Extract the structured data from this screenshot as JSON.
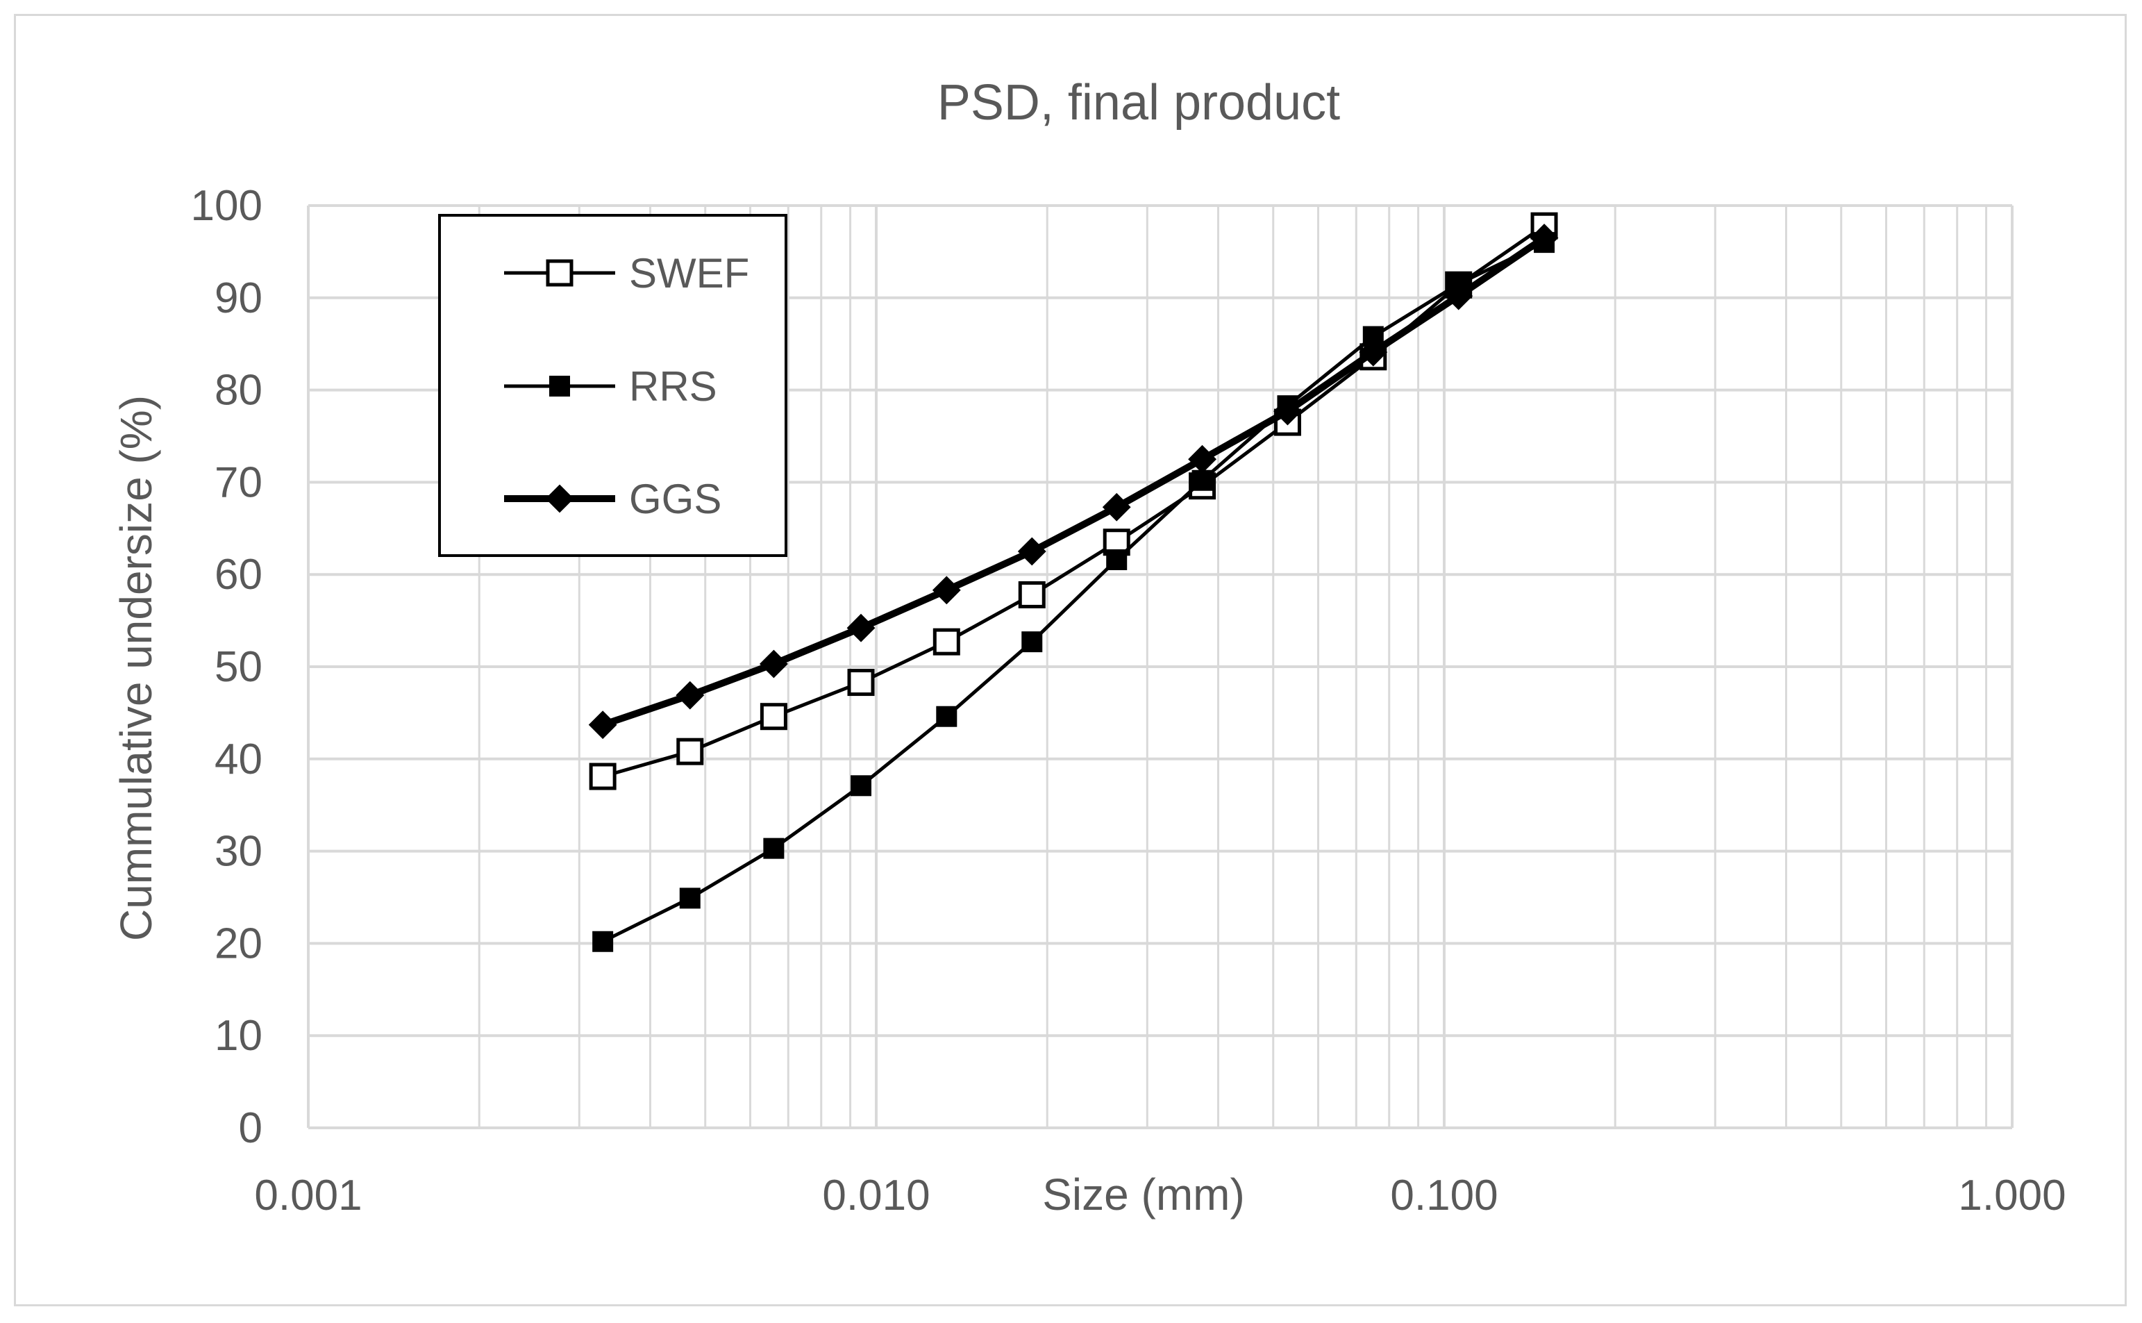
{
  "chart_data": {
    "type": "scatter",
    "title": "PSD, final product",
    "xlabel": "Size (mm)",
    "ylabel": "Cummulative undersize (%)",
    "xscale": "log",
    "xlim": [
      0.001,
      1.0
    ],
    "ylim": [
      0,
      100
    ],
    "x_tick_labels": [
      "0.001",
      "0.010",
      "0.100",
      "1.000"
    ],
    "x_tick_values": [
      0.001,
      0.01,
      0.1,
      1.0
    ],
    "y_tick_labels": [
      "0",
      "10",
      "20",
      "30",
      "40",
      "50",
      "60",
      "70",
      "80",
      "90",
      "100"
    ],
    "y_tick_values": [
      0,
      10,
      20,
      30,
      40,
      50,
      60,
      70,
      80,
      90,
      100
    ],
    "grid": true,
    "legend_position": "top-left",
    "lines": true,
    "series": [
      {
        "name": "SWEF",
        "marker": "open-square",
        "line_weight": "thin",
        "color": "#000000",
        "x": [
          0.0033,
          0.0047,
          0.0066,
          0.0094,
          0.0133,
          0.0188,
          0.0265,
          0.0375,
          0.053,
          0.075,
          0.106,
          0.15
        ],
        "y": [
          38.1,
          40.8,
          44.6,
          48.3,
          52.7,
          57.8,
          63.5,
          69.6,
          76.5,
          83.6,
          91.4,
          97.8
        ]
      },
      {
        "name": "RRS",
        "marker": "filled-square",
        "line_weight": "thin",
        "color": "#000000",
        "x": [
          0.0033,
          0.0047,
          0.0066,
          0.0094,
          0.0133,
          0.0188,
          0.0265,
          0.0375,
          0.053,
          0.075,
          0.106,
          0.15
        ],
        "y": [
          20.2,
          24.9,
          30.3,
          37.1,
          44.6,
          52.7,
          61.6,
          70.2,
          78.3,
          85.8,
          91.5,
          96.0
        ]
      },
      {
        "name": "GGS",
        "marker": "diamond",
        "line_weight": "thick",
        "color": "#000000",
        "x": [
          0.0033,
          0.0047,
          0.0066,
          0.0094,
          0.0133,
          0.0188,
          0.0265,
          0.0375,
          0.053,
          0.075,
          0.106,
          0.15
        ],
        "y": [
          43.7,
          46.9,
          50.3,
          54.2,
          58.3,
          62.5,
          67.3,
          72.5,
          77.7,
          84.1,
          90.2,
          96.5
        ]
      }
    ]
  }
}
